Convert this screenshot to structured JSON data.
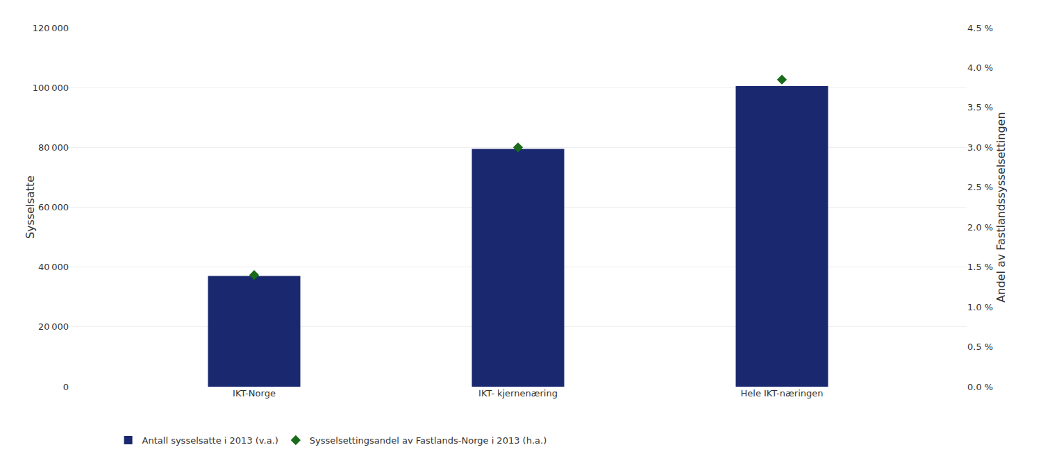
{
  "chart_data": {
    "type": "bar",
    "categories": [
      "IKT-Norge",
      "IKT- kjernenæring",
      "Hele IKT-næringen"
    ],
    "series": [
      {
        "name": "Antall sysselsatte i 2013 (v.a.)",
        "type": "bar",
        "color": "#1a2870",
        "values": [
          37000,
          79500,
          100500
        ]
      },
      {
        "name": "Sysselsettingsandel av Fastlands-Norge i 2013 (h.a.)",
        "type": "scatter",
        "axis": "y2",
        "marker": "diamond",
        "color": "#1a6b1a",
        "values": [
          0.014,
          0.03,
          0.0385
        ]
      }
    ],
    "ylabel": "Sysselsatte",
    "y2label": "Andel av Fastlandssysselsettingen",
    "ylim": [
      0,
      120000
    ],
    "yticks": [
      0,
      {
        "value": 20000,
        "label": "20 000"
      },
      {
        "value": 40000,
        "label": "40 000"
      },
      {
        "value": 60000,
        "label": "60 000"
      },
      {
        "value": 80000,
        "label": "80 000"
      },
      {
        "value": 100000,
        "label": "100 000"
      },
      {
        "value": 120000,
        "label": "120 000"
      }
    ],
    "y2lim": [
      0,
      0.045
    ],
    "y2ticks": [
      {
        "value": 0,
        "label": "0.0 %"
      },
      {
        "value": 0.005,
        "label": "0.5 %"
      },
      {
        "value": 0.01,
        "label": "1.0 %"
      },
      {
        "value": 0.015,
        "label": "1.5 %"
      },
      {
        "value": 0.02,
        "label": "2.0 %"
      },
      {
        "value": 0.025,
        "label": "2.5 %"
      },
      {
        "value": 0.03,
        "label": "3.0 %"
      },
      {
        "value": 0.035,
        "label": "3.5 %"
      },
      {
        "value": 0.04,
        "label": "4.0 %"
      },
      {
        "value": 0.045,
        "label": "4.5 %"
      }
    ],
    "grid": true,
    "legend": "bottom"
  }
}
